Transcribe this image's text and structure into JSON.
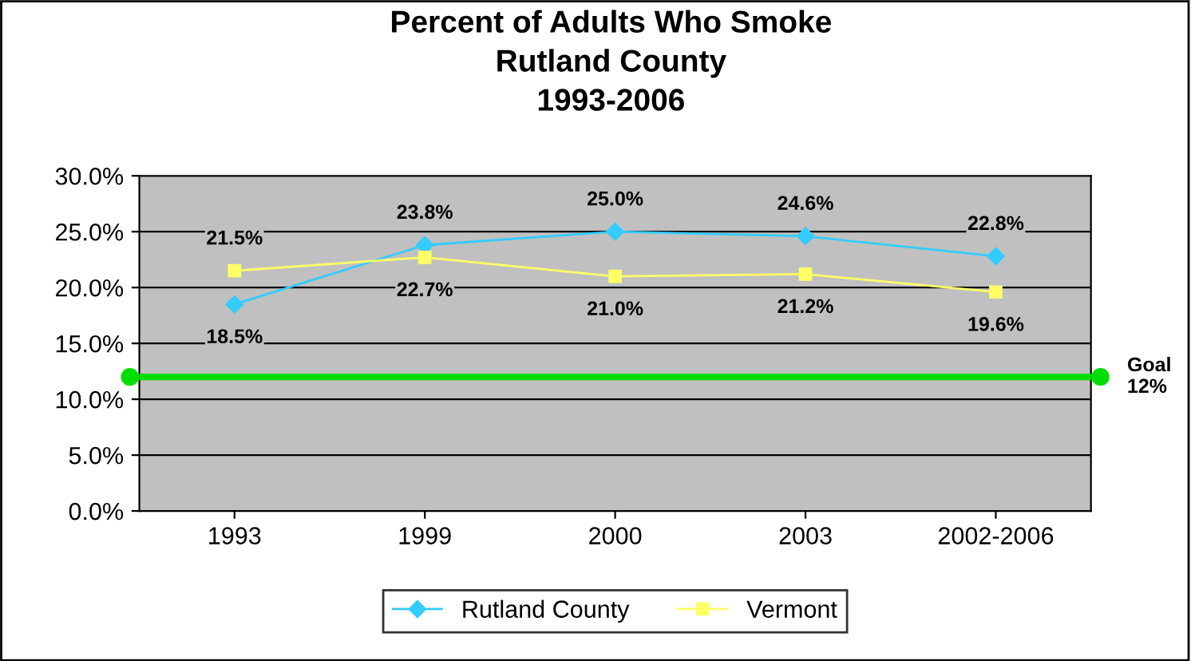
{
  "chart_data": {
    "type": "line",
    "title": "Percent of Adults Who Smoke\nRutland County\n1993-2006",
    "categories": [
      "1993",
      "1999",
      "2000",
      "2003",
      "2002-2006"
    ],
    "series": [
      {
        "name": "Rutland County",
        "color": "#33ccff",
        "values": [
          18.5,
          23.8,
          25.0,
          24.6,
          22.8
        ],
        "value_labels": [
          "18.5%",
          "23.8%",
          "25.0%",
          "24.6%",
          "22.8%"
        ],
        "marker": "diamond"
      },
      {
        "name": "Vermont",
        "color": "#ffff66",
        "values": [
          21.5,
          22.7,
          21.0,
          21.2,
          19.6
        ],
        "value_labels": [
          "21.5%",
          "22.7%",
          "21.0%",
          "21.2%",
          "19.6%"
        ],
        "marker": "square"
      }
    ],
    "ylim": [
      0,
      30
    ],
    "yticks": [
      {
        "value": 0,
        "label": "0.0%"
      },
      {
        "value": 5,
        "label": "5.0%"
      },
      {
        "value": 10,
        "label": "10.0%"
      },
      {
        "value": 15,
        "label": "15.0%"
      },
      {
        "value": 20,
        "label": "20.0%"
      },
      {
        "value": 25,
        "label": "25.0%"
      },
      {
        "value": 30,
        "label": "30.0%"
      }
    ],
    "ref_lines": [
      {
        "axis": "y",
        "value": 12,
        "label": "Goal\n12%",
        "color": "#00dd00"
      }
    ],
    "grid": "y",
    "legend": "bottom"
  }
}
